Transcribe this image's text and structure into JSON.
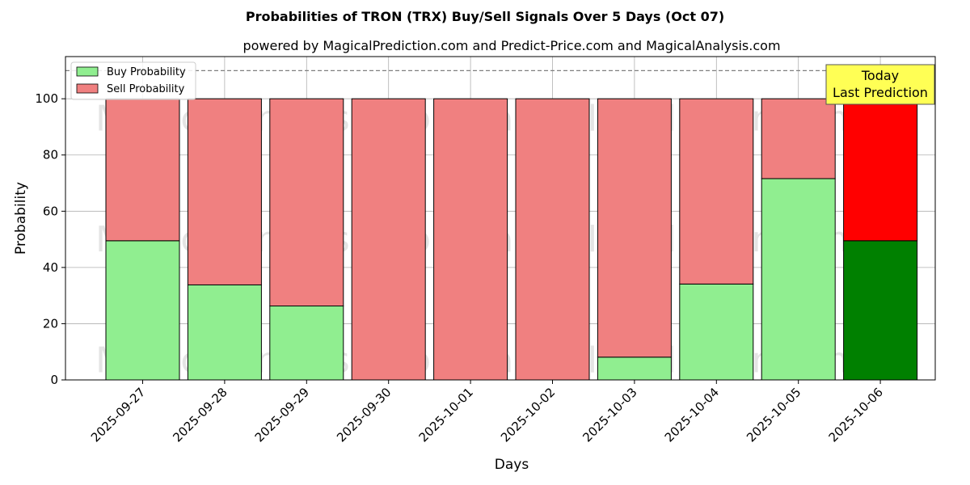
{
  "chart_data": {
    "type": "bar",
    "stacked": true,
    "title": "Probabilities of TRON (TRX) Buy/Sell Signals Over 5 Days (Oct 07)",
    "subtitle": "powered by MagicalPrediction.com and Predict-Price.com and MagicalAnalysis.com",
    "xlabel": "Days",
    "ylabel": "Probability",
    "ylim": [
      0,
      115
    ],
    "yticks": [
      0,
      20,
      40,
      60,
      80,
      100
    ],
    "grid": true,
    "legend_position": "top-left",
    "categories": [
      "2025-09-27",
      "2025-09-28",
      "2025-09-29",
      "2025-09-30",
      "2025-10-01",
      "2025-10-02",
      "2025-10-03",
      "2025-10-04",
      "2025-10-05",
      "2025-10-06"
    ],
    "series": [
      {
        "name": "Buy Probability",
        "color": "#90ee90",
        "highlight_color": "#008000",
        "values": [
          49.5,
          33.8,
          26.3,
          0,
          0,
          0,
          8.1,
          34.1,
          71.6,
          49.5
        ]
      },
      {
        "name": "Sell Probability",
        "color": "#f08080",
        "highlight_color": "#ff0000",
        "values": [
          50.5,
          66.2,
          73.7,
          100,
          100,
          100,
          91.9,
          65.9,
          28.4,
          50.5
        ]
      }
    ],
    "highlight_index": 9,
    "reference_line": {
      "y": 110,
      "style": "dashed",
      "color": "#808080"
    },
    "annotation": {
      "lines": [
        "Today",
        "Last Prediction"
      ],
      "bg_color": "#ffff55"
    },
    "watermarks": [
      "MagicalAnalysis.com",
      "MagicalPrediction.com",
      "MagicalAnalysis.com",
      "MagicalPrediction.com",
      "MagicalAnalysis.com",
      "MagicalPrediction.com"
    ]
  }
}
